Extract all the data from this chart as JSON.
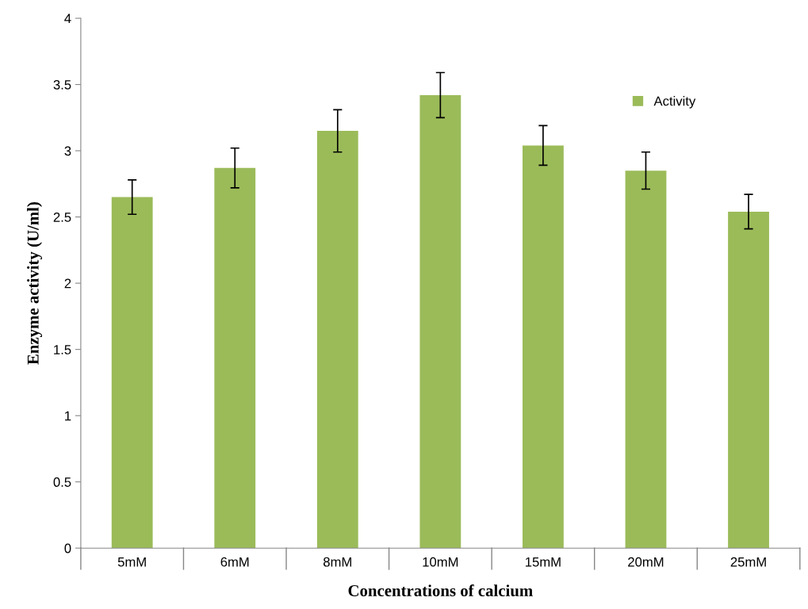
{
  "chart_data": {
    "type": "bar",
    "xlabel": "Concentrations of calcium",
    "ylabel": "Enzyme activity (U/ml)",
    "categories": [
      "5mM",
      "6mM",
      "8mM",
      "10mM",
      "15mM",
      "20mM",
      "25mM"
    ],
    "series": [
      {
        "name": "Activity",
        "color": "#9bbb59",
        "values": [
          2.65,
          2.87,
          3.15,
          3.42,
          3.04,
          2.85,
          2.54
        ],
        "errors": [
          0.13,
          0.15,
          0.16,
          0.17,
          0.15,
          0.14,
          0.13
        ]
      }
    ],
    "ylim": [
      0,
      4
    ],
    "yticks": [
      0,
      0.5,
      1,
      1.5,
      2,
      2.5,
      3,
      3.5,
      4
    ],
    "grid": false,
    "legend": "top right"
  }
}
